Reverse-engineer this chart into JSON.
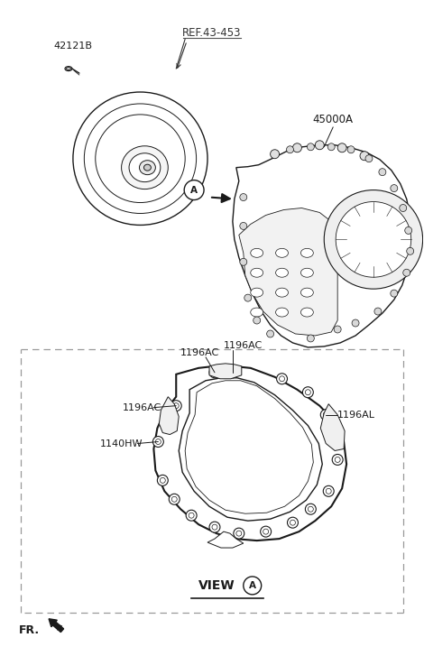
{
  "bg_color": "#ffffff",
  "line_color": "#1a1a1a",
  "labels": {
    "part_42121B": "42121B",
    "ref_43453": "REF.43-453",
    "part_45000A": "45000A",
    "part_1196AC_1": "1196AC",
    "part_1196AC_2": "1196AC",
    "part_1196AC_3": "1196AC",
    "part_1196AL": "1196AL",
    "part_1140HW": "1140HW",
    "view_label": "VIEW",
    "circle_a": "A",
    "fr_label": "FR."
  },
  "font_size": 8,
  "font_size_ref": 8.5,
  "font_size_view": 10
}
